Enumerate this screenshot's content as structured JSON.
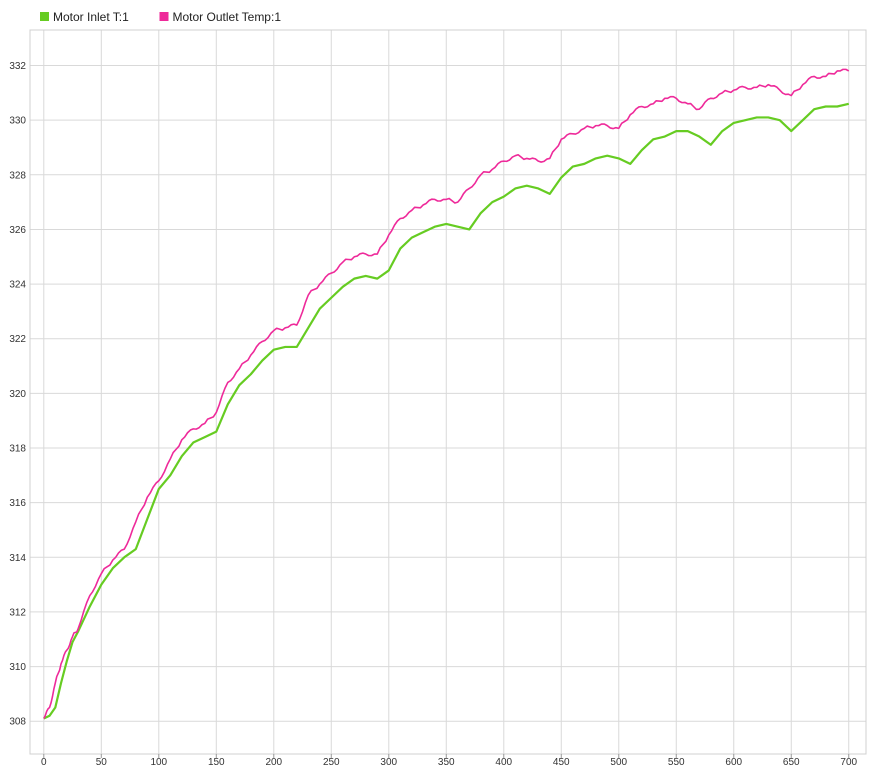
{
  "chart_data": {
    "type": "line",
    "title": "",
    "xlabel": "",
    "ylabel": "",
    "xlim": [
      -12,
      715
    ],
    "ylim": [
      306.8,
      333.3
    ],
    "x_ticks": [
      0,
      50,
      100,
      150,
      200,
      250,
      300,
      350,
      400,
      450,
      500,
      550,
      600,
      650,
      700
    ],
    "y_ticks": [
      308,
      310,
      312,
      314,
      316,
      318,
      320,
      322,
      324,
      326,
      328,
      330,
      332
    ],
    "grid": true,
    "legend_position": "top-left",
    "series": [
      {
        "name": "Motor Inlet T:1",
        "color": "#66cc22",
        "x": [
          0,
          5,
          10,
          15,
          20,
          25,
          30,
          40,
          50,
          60,
          70,
          80,
          90,
          100,
          110,
          120,
          130,
          140,
          150,
          160,
          170,
          180,
          190,
          200,
          210,
          220,
          230,
          240,
          250,
          260,
          270,
          280,
          290,
          300,
          310,
          320,
          330,
          340,
          350,
          360,
          370,
          380,
          390,
          400,
          410,
          420,
          430,
          440,
          450,
          460,
          470,
          480,
          490,
          500,
          510,
          520,
          530,
          540,
          550,
          560,
          570,
          580,
          590,
          600,
          610,
          620,
          630,
          640,
          650,
          660,
          670,
          680,
          690,
          700
        ],
        "y": [
          308.1,
          308.2,
          308.5,
          309.4,
          310.2,
          310.9,
          311.3,
          312.2,
          313.0,
          313.6,
          314.0,
          314.3,
          315.4,
          316.5,
          317.0,
          317.7,
          318.2,
          318.4,
          318.6,
          319.6,
          320.3,
          320.7,
          321.2,
          321.6,
          321.7,
          321.7,
          322.4,
          323.1,
          323.5,
          323.9,
          324.2,
          324.3,
          324.2,
          324.5,
          325.3,
          325.7,
          325.9,
          326.1,
          326.2,
          326.1,
          326.0,
          326.6,
          327.0,
          327.2,
          327.5,
          327.6,
          327.5,
          327.3,
          327.9,
          328.3,
          328.4,
          328.6,
          328.7,
          328.6,
          328.4,
          328.9,
          329.3,
          329.4,
          329.6,
          329.6,
          329.4,
          329.1,
          329.6,
          329.9,
          330.0,
          330.1,
          330.1,
          330.0,
          329.6,
          330.0,
          330.4,
          330.5,
          330.5,
          330.6
        ]
      },
      {
        "name": "Motor Outlet Temp:1",
        "color": "#ee2a9a",
        "x": [
          0,
          5,
          10,
          15,
          20,
          25,
          30,
          40,
          50,
          60,
          70,
          80,
          90,
          100,
          110,
          120,
          130,
          140,
          150,
          160,
          170,
          180,
          190,
          200,
          210,
          220,
          230,
          240,
          250,
          260,
          270,
          280,
          290,
          300,
          310,
          320,
          330,
          340,
          350,
          360,
          370,
          380,
          390,
          400,
          410,
          420,
          430,
          440,
          450,
          460,
          470,
          480,
          490,
          500,
          510,
          520,
          530,
          540,
          550,
          560,
          570,
          580,
          590,
          600,
          610,
          620,
          630,
          640,
          650,
          660,
          670,
          680,
          690,
          700
        ],
        "y": [
          308.1,
          308.5,
          309.4,
          310.1,
          310.6,
          311.1,
          311.4,
          312.6,
          313.4,
          313.9,
          314.3,
          315.3,
          316.2,
          316.8,
          317.6,
          318.3,
          318.7,
          318.9,
          319.3,
          320.4,
          320.9,
          321.4,
          321.9,
          322.3,
          322.4,
          322.5,
          323.6,
          324.0,
          324.4,
          324.8,
          325.0,
          325.1,
          325.1,
          325.8,
          326.4,
          326.7,
          326.9,
          327.1,
          327.1,
          327.0,
          327.5,
          328.0,
          328.2,
          328.5,
          328.7,
          328.6,
          328.5,
          328.6,
          329.3,
          329.5,
          329.7,
          329.8,
          329.8,
          329.7,
          330.2,
          330.5,
          330.6,
          330.8,
          330.8,
          330.6,
          330.4,
          330.8,
          331.0,
          331.1,
          331.2,
          331.2,
          331.3,
          331.1,
          330.9,
          331.3,
          331.6,
          331.6,
          331.8,
          331.8
        ]
      }
    ]
  }
}
